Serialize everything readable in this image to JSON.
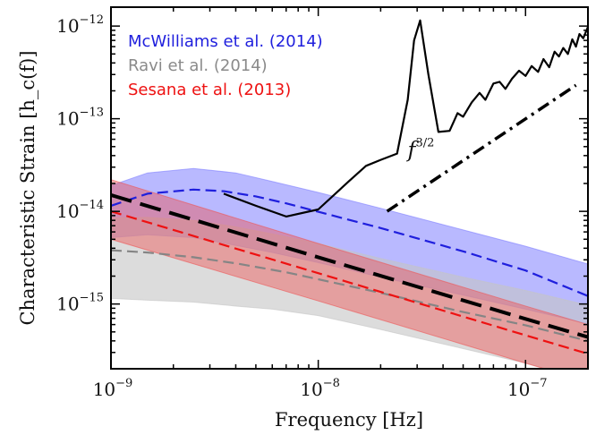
{
  "chart_data": {
    "type": "line",
    "title": "",
    "xlabel": "Frequency [Hz]",
    "ylabel": "Characteristic Strain [h_c(f)]",
    "xscale": "log",
    "yscale": "log",
    "xlim": [
      1e-09,
      2e-07
    ],
    "ylim": [
      2e-16,
      1.6e-12
    ],
    "grid": false,
    "legend_placement": "top-left",
    "x_ticks": [
      {
        "value": 1e-09,
        "base": "10",
        "exp": "−9"
      },
      {
        "value": 1e-08,
        "base": "10",
        "exp": "−8"
      },
      {
        "value": 1e-07,
        "base": "10",
        "exp": "−7"
      }
    ],
    "y_ticks": [
      {
        "value": 1e-15,
        "base": "10",
        "exp": "−15"
      },
      {
        "value": 1e-14,
        "base": "10",
        "exp": "−14"
      },
      {
        "value": 1e-13,
        "base": "10",
        "exp": "−13"
      },
      {
        "value": 1e-12,
        "base": "10",
        "exp": "−12"
      }
    ],
    "legend": [
      {
        "label": "McWilliams et al. (2014)",
        "color": "#1f1fdd"
      },
      {
        "label": "Ravi et al. (2014)",
        "color": "#8a8a8a"
      },
      {
        "label": "Sesana et al. (2013)",
        "color": "#ee1111"
      }
    ],
    "bands": [
      {
        "name": "McWilliams et al. (2014)",
        "fill": "#7f7fff",
        "opacity": 0.55,
        "x": [
          1e-09,
          1.5e-09,
          2.5e-09,
          4e-09,
          6e-09,
          1e-08,
          2e-08,
          5e-08,
          1e-07,
          2e-07
        ],
        "upper": [
          1.9e-14,
          2.6e-14,
          2.9e-14,
          2.6e-14,
          2.1e-14,
          1.6e-14,
          1.08e-14,
          6.3e-15,
          4.2e-15,
          2.7e-15
        ],
        "lower": [
          5.2e-15,
          5.6e-15,
          5.2e-15,
          4.3e-15,
          3.6e-15,
          2.8e-15,
          1.95e-15,
          1.25e-15,
          8.8e-16,
          6.1e-16
        ]
      },
      {
        "name": "Ravi et al. (2014)",
        "fill": "#c4c4c4",
        "opacity": 0.6,
        "x": [
          1e-09,
          1.5e-09,
          2.5e-09,
          4e-09,
          6e-09,
          1e-08,
          2e-08,
          5e-08,
          1e-07,
          2e-07
        ],
        "upper": [
          8.5e-15,
          8.6e-15,
          8e-15,
          6.8e-15,
          5.7e-15,
          4.5e-15,
          3.1e-15,
          1.95e-15,
          1.4e-15,
          9.7e-16
        ],
        "lower": [
          1.15e-15,
          1.1e-15,
          1.05e-15,
          9.5e-16,
          8.8e-16,
          7.5e-16,
          5.3e-16,
          3.3e-16,
          2.3e-16,
          1.5e-16
        ]
      },
      {
        "name": "Sesana et al. (2013)",
        "fill": "#ee5555",
        "opacity": 0.45,
        "x": [
          1e-09,
          1e-08,
          1e-07,
          2e-07
        ],
        "upper": [
          2.2e-14,
          4.5e-15,
          9.5e-16,
          6e-16
        ],
        "lower": [
          5e-15,
          1.08e-15,
          2.3e-16,
          1.45e-16
        ]
      }
    ],
    "series": [
      {
        "name": "McWilliams et al. (2014)",
        "color": "#1f1fdd",
        "dash": "12,6",
        "width": 2.2,
        "x": [
          1e-09,
          1.5e-09,
          2.5e-09,
          3.5e-09,
          5e-09,
          7e-09,
          1e-08,
          2e-08,
          5e-08,
          1e-07,
          2e-07
        ],
        "y": [
          1.15e-14,
          1.55e-14,
          1.72e-14,
          1.65e-14,
          1.45e-14,
          1.22e-14,
          9.9e-15,
          6.6e-15,
          3.7e-15,
          2.3e-15,
          1.22e-15
        ]
      },
      {
        "name": "Ravi et al. (2014)",
        "color": "#858585",
        "dash": "12,6",
        "width": 2.2,
        "x": [
          1e-09,
          1.5e-09,
          2.5e-09,
          4e-09,
          7e-09,
          1e-08,
          2e-08,
          5e-08,
          1e-07,
          2e-07
        ],
        "y": [
          3.8e-15,
          3.6e-15,
          3.2e-15,
          2.75e-15,
          2.2e-15,
          1.85e-15,
          1.32e-15,
          8.2e-16,
          5.9e-16,
          4e-16
        ]
      },
      {
        "name": "Sesana et al. (2013)",
        "color": "#ee1111",
        "dash": "12,6",
        "width": 2.2,
        "x": [
          1e-09,
          1e-08,
          1e-07,
          2e-07
        ],
        "y": [
          1e-14,
          2.15e-15,
          4.6e-16,
          2.9e-16
        ]
      },
      {
        "name": "",
        "color": "#000000",
        "dash": "24,10",
        "width": 4,
        "x": [
          1e-09,
          1e-08,
          1e-07,
          2e-07
        ],
        "y": [
          1.5e-14,
          3.2e-15,
          6.9e-16,
          4.4e-16
        ]
      },
      {
        "name": "",
        "color": "#000000",
        "dash": "",
        "width": 2.2,
        "x": [
          3.5e-09,
          5e-09,
          7e-09,
          1e-08,
          1.4e-08,
          1.7e-08,
          2e-08,
          2.4e-08,
          2.7e-08,
          2.9e-08,
          3.1e-08,
          3.4e-08,
          3.8e-08,
          4.3e-08,
          4.7e-08,
          5e-08,
          5.5e-08,
          6e-08,
          6.4e-08,
          7e-08,
          7.5e-08,
          8e-08,
          8.6e-08,
          9.3e-08,
          1e-07,
          1.07e-07,
          1.15e-07,
          1.22e-07,
          1.3e-07,
          1.38e-07,
          1.45e-07,
          1.52e-07,
          1.6e-07,
          1.68e-07,
          1.75e-07,
          1.82e-07,
          1.9e-07,
          2e-07
        ],
        "y": [
          1.55e-14,
          1.15e-14,
          8.8e-15,
          1.05e-14,
          2.1e-14,
          3.1e-14,
          3.6e-14,
          4.2e-14,
          1.6e-13,
          7e-13,
          1.15e-12,
          3e-13,
          7.2e-14,
          7.4e-14,
          1.15e-13,
          1.05e-13,
          1.5e-13,
          1.9e-13,
          1.6e-13,
          2.4e-13,
          2.5e-13,
          2.1e-13,
          2.7e-13,
          3.3e-13,
          2.9e-13,
          3.7e-13,
          3.2e-13,
          4.4e-13,
          3.6e-13,
          5.3e-13,
          4.7e-13,
          5.8e-13,
          5e-13,
          7.2e-13,
          6e-13,
          8.2e-13,
          7.4e-13,
          9.8e-13
        ]
      },
      {
        "name": "",
        "color": "#000000",
        "dash": "14,6,3,6",
        "width": 3.5,
        "x": [
          2.15e-08,
          1.75e-07
        ],
        "y": [
          1e-14,
          2.3e-13
        ]
      }
    ],
    "annotations": [
      {
        "text": "f",
        "sup": "3/2",
        "x": 2.7e-08,
        "y": 4.6e-14
      }
    ]
  }
}
